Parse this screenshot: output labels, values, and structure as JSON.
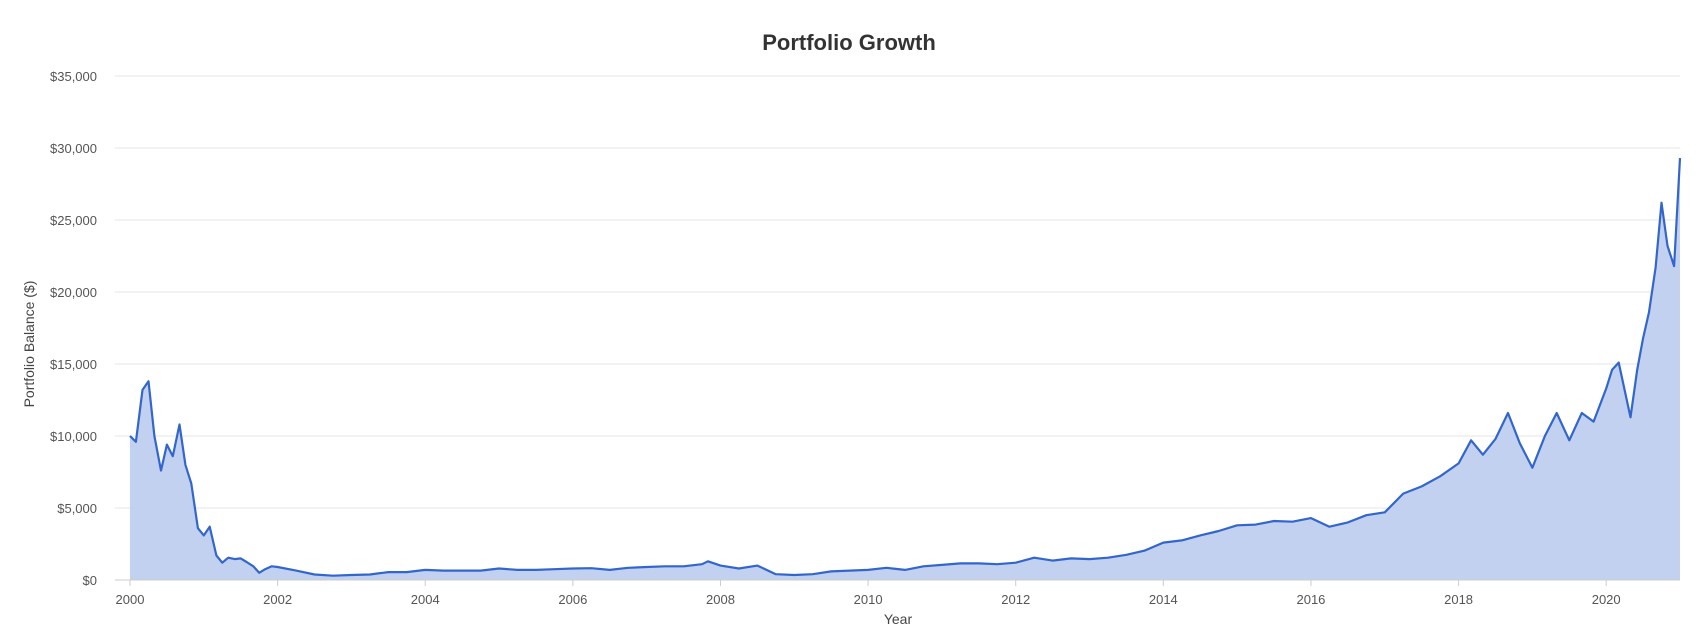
{
  "chart_data": {
    "type": "area",
    "title": "Portfolio Growth",
    "xlabel": "Year",
    "ylabel": "Portfolio Balance ($)",
    "xlim": [
      2000,
      2021
    ],
    "ylim": [
      0,
      35000
    ],
    "x_ticks": [
      "2000",
      "2002",
      "2004",
      "2006",
      "2008",
      "2010",
      "2012",
      "2014",
      "2016",
      "2018",
      "2020"
    ],
    "y_ticks": [
      "$0",
      "$5,000",
      "$10,000",
      "$15,000",
      "$20,000",
      "$25,000",
      "$30,000",
      "$35,000"
    ],
    "grid": true,
    "legend": "none",
    "colors": {
      "line": "#3366cc",
      "fill": "#c2d1f0",
      "grid": "#e6e6e6"
    },
    "series": [
      {
        "x": [
          2000.0,
          2000.08,
          2000.17,
          2000.25,
          2000.33,
          2000.42,
          2000.5,
          2000.58,
          2000.67,
          2000.75,
          2000.83,
          2000.92,
          2001.0,
          2001.08,
          2001.17,
          2001.25,
          2001.33,
          2001.42,
          2001.5,
          2001.58,
          2001.67,
          2001.75,
          2001.83,
          2001.92,
          2002.0,
          2002.25,
          2002.5,
          2002.75,
          2003.0,
          2003.25,
          2003.5,
          2003.75,
          2004.0,
          2004.25,
          2004.5,
          2004.75,
          2005.0,
          2005.25,
          2005.5,
          2005.75,
          2006.0,
          2006.25,
          2006.5,
          2006.75,
          2007.0,
          2007.25,
          2007.5,
          2007.75,
          2007.83,
          2008.0,
          2008.25,
          2008.5,
          2008.75,
          2009.0,
          2009.25,
          2009.5,
          2009.75,
          2010.0,
          2010.25,
          2010.5,
          2010.75,
          2011.0,
          2011.25,
          2011.5,
          2011.75,
          2012.0,
          2012.25,
          2012.5,
          2012.75,
          2013.0,
          2013.25,
          2013.5,
          2013.75,
          2014.0,
          2014.25,
          2014.5,
          2014.75,
          2015.0,
          2015.25,
          2015.5,
          2015.75,
          2016.0,
          2016.25,
          2016.5,
          2016.75,
          2017.0,
          2017.25,
          2017.5,
          2017.75,
          2018.0,
          2018.17,
          2018.33,
          2018.5,
          2018.67,
          2018.83,
          2019.0,
          2019.17,
          2019.33,
          2019.5,
          2019.67,
          2019.83,
          2020.0,
          2020.08,
          2020.17,
          2020.25,
          2020.33,
          2020.42,
          2020.5,
          2020.58,
          2020.67,
          2020.75,
          2020.83,
          2020.92,
          2021.0
        ],
        "values": [
          10000,
          9600,
          13200,
          13800,
          10000,
          7600,
          9400,
          8600,
          10800,
          8000,
          6700,
          3600,
          3100,
          3700,
          1700,
          1200,
          1550,
          1450,
          1500,
          1250,
          950,
          500,
          750,
          950,
          900,
          650,
          380,
          300,
          350,
          380,
          550,
          550,
          700,
          650,
          650,
          650,
          800,
          700,
          700,
          750,
          800,
          820,
          700,
          850,
          900,
          950,
          950,
          1100,
          1300,
          1000,
          800,
          1000,
          400,
          350,
          400,
          600,
          650,
          700,
          850,
          700,
          950,
          1050,
          1150,
          1150,
          1100,
          1200,
          1550,
          1350,
          1500,
          1450,
          1550,
          1750,
          2050,
          2600,
          2750,
          3100,
          3400,
          3800,
          3850,
          4100,
          4050,
          4300,
          3700,
          4000,
          4500,
          4700,
          6000,
          6500,
          7200,
          8100,
          9700,
          8700,
          9800,
          11600,
          9500,
          7800,
          10000,
          11600,
          9700,
          11600,
          11000,
          13300,
          14600,
          15100,
          13200,
          11300,
          14600,
          16800,
          18600,
          21700,
          26200,
          23200,
          21800,
          29300
        ]
      }
    ]
  }
}
